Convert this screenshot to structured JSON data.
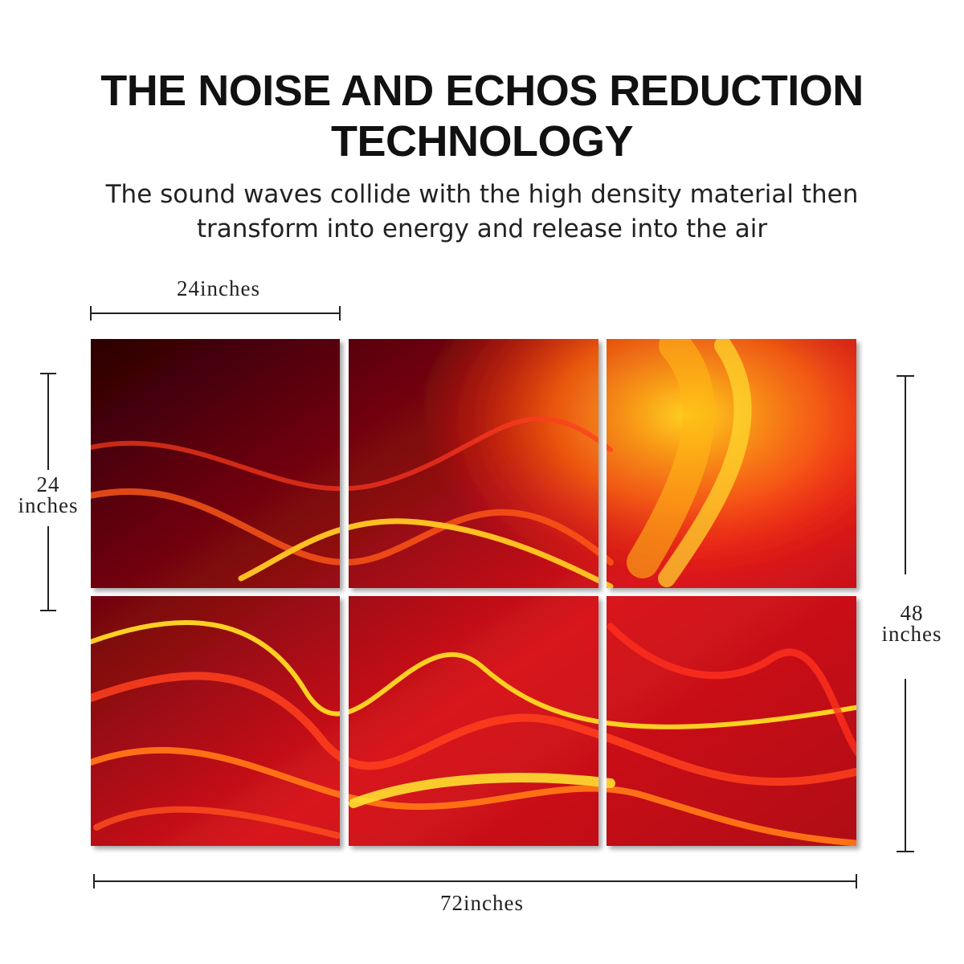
{
  "header": {
    "title": [
      "THE NOISE AND ECHOS REDUCTION",
      "TECHNOLOGY"
    ],
    "subtitle": [
      "The sound waves collide with the high density material then",
      "transform into energy and release into the air"
    ]
  },
  "dimensions": {
    "panel_width": "24inches",
    "panel_height": [
      "24",
      "inches"
    ],
    "total_height": [
      "48",
      "inches"
    ],
    "total_width": "72inches"
  }
}
